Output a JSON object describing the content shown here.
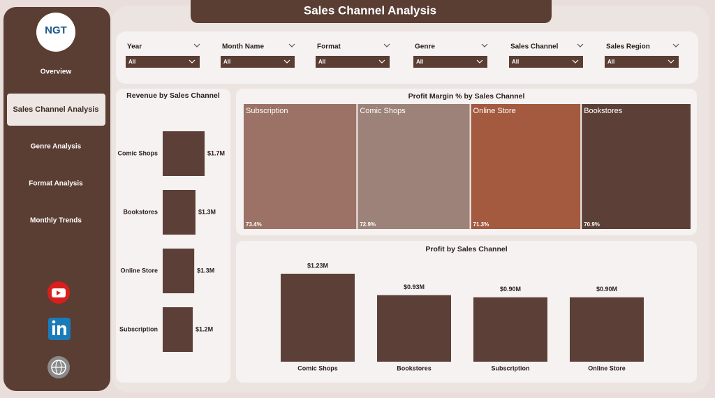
{
  "header": {
    "title": "Sales Channel Analysis"
  },
  "logo": "NGT",
  "nav": [
    "Overview",
    "Sales Channel Analysis",
    "Genre Analysis",
    "Format Analysis",
    "Monthly Trends"
  ],
  "active_nav": 1,
  "filters": [
    {
      "label": "Year",
      "value": "All"
    },
    {
      "label": "Month Name",
      "value": "All"
    },
    {
      "label": "Format",
      "value": "All"
    },
    {
      "label": "Genre",
      "value": "All"
    },
    {
      "label": "Sales Channel",
      "value": "All"
    },
    {
      "label": "Sales Region",
      "value": "All"
    }
  ],
  "chart_data": [
    {
      "type": "bar",
      "orientation": "horizontal",
      "title": "Revenue by Sales Channel",
      "categories": [
        "Comic Shops",
        "Bookstores",
        "Online Store",
        "Subscription"
      ],
      "values": [
        1700000,
        1330000,
        1280000,
        1220000
      ],
      "value_labels": [
        "$1.7M",
        "$1.3M",
        "$1.3M",
        "$1.2M"
      ],
      "color": "#5c4037"
    },
    {
      "type": "treemap",
      "title": "Profit Margin % by Sales Channel",
      "categories": [
        "Subscription",
        "Comic Shops",
        "Online Store",
        "Bookstores"
      ],
      "values": [
        73.4,
        72.9,
        71.3,
        70.9
      ],
      "value_labels": [
        "73.4%",
        "72.9%",
        "71.3%",
        "70.9%"
      ],
      "colors": [
        "#9b7265",
        "#9c8278",
        "#a35a3f",
        "#5c4037"
      ]
    },
    {
      "type": "bar",
      "orientation": "vertical",
      "title": "Profit by Sales Channel",
      "categories": [
        "Comic Shops",
        "Bookstores",
        "Subscription",
        "Online Store"
      ],
      "values": [
        1230000,
        930000,
        900000,
        900000
      ],
      "value_labels": [
        "$1.23M",
        "$0.93M",
        "$0.90M",
        "$0.90M"
      ],
      "color": "#5c4037"
    }
  ]
}
